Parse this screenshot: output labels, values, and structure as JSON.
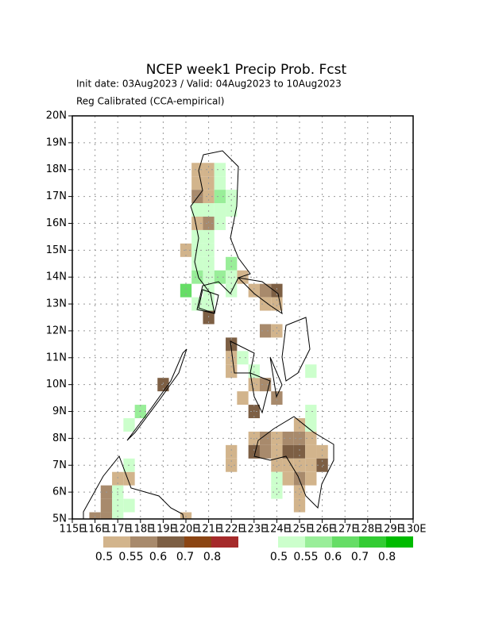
{
  "chart_data": {
    "type": "grid-map",
    "title": "NCEP week1 Precip Prob. Fcst",
    "subtitle": "Init date: 03Aug2023 / Valid: 04Aug2023 to 10Aug2023",
    "subtitle2": "Reg Calibrated (CCA-empirical)",
    "xlim": [
      115,
      130
    ],
    "ylim": [
      5,
      20
    ],
    "xticks": [
      {
        "value": 115,
        "label": "115E"
      },
      {
        "value": 116,
        "label": "116E"
      },
      {
        "value": 117,
        "label": "117E"
      },
      {
        "value": 118,
        "label": "118E"
      },
      {
        "value": 119,
        "label": "119E"
      },
      {
        "value": 120,
        "label": "120E"
      },
      {
        "value": 121,
        "label": "121E"
      },
      {
        "value": 122,
        "label": "122E"
      },
      {
        "value": 123,
        "label": "123E"
      },
      {
        "value": 124,
        "label": "124E"
      },
      {
        "value": 125,
        "label": "125E"
      },
      {
        "value": 126,
        "label": "126E"
      },
      {
        "value": 127,
        "label": "127E"
      },
      {
        "value": 128,
        "label": "128E"
      },
      {
        "value": 129,
        "label": "129E"
      },
      {
        "value": 130,
        "label": "130E"
      }
    ],
    "yticks": [
      {
        "value": 5,
        "label": "5N"
      },
      {
        "value": 6,
        "label": "6N"
      },
      {
        "value": 7,
        "label": "7N"
      },
      {
        "value": 8,
        "label": "8N"
      },
      {
        "value": 9,
        "label": "9N"
      },
      {
        "value": 10,
        "label": "10N"
      },
      {
        "value": 11,
        "label": "11N"
      },
      {
        "value": 12,
        "label": "12N"
      },
      {
        "value": 13,
        "label": "13N"
      },
      {
        "value": 14,
        "label": "14N"
      },
      {
        "value": 15,
        "label": "15N"
      },
      {
        "value": 16,
        "label": "16N"
      },
      {
        "value": 17,
        "label": "17N"
      },
      {
        "value": 18,
        "label": "18N"
      },
      {
        "value": 19,
        "label": "19N"
      },
      {
        "value": 20,
        "label": "20N"
      }
    ],
    "grid": true,
    "levels": [
      0.5,
      0.55,
      0.6,
      0.7,
      0.8
    ],
    "below_colors": [
      "#d2b48c",
      "#a88a6c",
      "#7d5f44",
      "#8b4513",
      "#a52a2a"
    ],
    "above_colors": [
      "#ccffcc",
      "#99ee99",
      "#66dd66",
      "#33cc33",
      "#00bb00"
    ],
    "below": [
      [
        120.5,
        18,
        0.5
      ],
      [
        121,
        18,
        0.5
      ],
      [
        120.5,
        17.5,
        0.5
      ],
      [
        121,
        17.5,
        0.5
      ],
      [
        120.5,
        17,
        0.55
      ],
      [
        121,
        17,
        0.5
      ],
      [
        120.5,
        16,
        0.5
      ],
      [
        121,
        16,
        0.55
      ],
      [
        120,
        15,
        0.5
      ],
      [
        122.5,
        14,
        0.5
      ],
      [
        123,
        13.5,
        0.5
      ],
      [
        123.5,
        13.5,
        0.55
      ],
      [
        124,
        13.5,
        0.6
      ],
      [
        123.5,
        13,
        0.5
      ],
      [
        124,
        13,
        0.5
      ],
      [
        121,
        12.5,
        0.6
      ],
      [
        123.5,
        12,
        0.55
      ],
      [
        124,
        12,
        0.5
      ],
      [
        122,
        11.5,
        0.6
      ],
      [
        122,
        11,
        0.5
      ],
      [
        122,
        10.5,
        0.5
      ],
      [
        119,
        10,
        0.6
      ],
      [
        123,
        10,
        0.5
      ],
      [
        123.5,
        10,
        0.55
      ],
      [
        122.5,
        9.5,
        0.5
      ],
      [
        124,
        9.5,
        0.55
      ],
      [
        123,
        9,
        0.6
      ],
      [
        125,
        8.5,
        0.5
      ],
      [
        123,
        8,
        0.5
      ],
      [
        123.5,
        8,
        0.55
      ],
      [
        124,
        8,
        0.5
      ],
      [
        124.5,
        8,
        0.55
      ],
      [
        125,
        8,
        0.55
      ],
      [
        125.5,
        8,
        0.5
      ],
      [
        122,
        7.5,
        0.5
      ],
      [
        123,
        7.5,
        0.6
      ],
      [
        123.5,
        7.5,
        0.55
      ],
      [
        124,
        7.5,
        0.5
      ],
      [
        124.5,
        7.5,
        0.6
      ],
      [
        125,
        7.5,
        0.6
      ],
      [
        125.5,
        7.5,
        0.5
      ],
      [
        126,
        7.5,
        0.5
      ],
      [
        122,
        7,
        0.5
      ],
      [
        124,
        7,
        0.5
      ],
      [
        124.5,
        7,
        0.5
      ],
      [
        125,
        7,
        0.5
      ],
      [
        125.5,
        7,
        0.5
      ],
      [
        126,
        7,
        0.6
      ],
      [
        117,
        6.5,
        0.5
      ],
      [
        117.5,
        6.5,
        0.5
      ],
      [
        124.5,
        6.5,
        0.5
      ],
      [
        125,
        6.5,
        0.55
      ],
      [
        125.5,
        6.5,
        0.5
      ],
      [
        116.5,
        6,
        0.55
      ],
      [
        125,
        6,
        0.5
      ],
      [
        116.5,
        5.5,
        0.55
      ],
      [
        125,
        5.5,
        0.5
      ],
      [
        116,
        5,
        0.55
      ],
      [
        116.5,
        5,
        0.55
      ],
      [
        120,
        5,
        0.5
      ]
    ],
    "above": [
      [
        121.5,
        18,
        0.5
      ],
      [
        121.5,
        17.5,
        0.5
      ],
      [
        121.5,
        17,
        0.55
      ],
      [
        122,
        17,
        0.5
      ],
      [
        120.5,
        16.5,
        0.5
      ],
      [
        121,
        16.5,
        0.5
      ],
      [
        121.5,
        16.5,
        0.5
      ],
      [
        122,
        16.5,
        0.5
      ],
      [
        121.5,
        16,
        0.5
      ],
      [
        120.5,
        15.5,
        0.5
      ],
      [
        121,
        15.5,
        0.5
      ],
      [
        120.5,
        15,
        0.5
      ],
      [
        121,
        15,
        0.5
      ],
      [
        120.5,
        14.5,
        0.5
      ],
      [
        121,
        14.5,
        0.5
      ],
      [
        122,
        14.5,
        0.55
      ],
      [
        120.5,
        14,
        0.55
      ],
      [
        121,
        14,
        0.5
      ],
      [
        121.5,
        14,
        0.55
      ],
      [
        122,
        14,
        0.5
      ],
      [
        120,
        13.5,
        0.6
      ],
      [
        121,
        13.5,
        0.5
      ],
      [
        122,
        13.5,
        0.5
      ],
      [
        120.5,
        13,
        0.5
      ],
      [
        121,
        13,
        0.5
      ],
      [
        122.5,
        11,
        0.5
      ],
      [
        123,
        10.5,
        0.5
      ],
      [
        125.5,
        10.5,
        0.5
      ],
      [
        118,
        9,
        0.55
      ],
      [
        125.5,
        9,
        0.5
      ],
      [
        117.5,
        8.5,
        0.5
      ],
      [
        125.5,
        8.5,
        0.5
      ],
      [
        117.5,
        7,
        0.5
      ],
      [
        124,
        6.5,
        0.5
      ],
      [
        117,
        6,
        0.5
      ],
      [
        124,
        6,
        0.5
      ],
      [
        117,
        5.5,
        0.5
      ],
      [
        117.5,
        5.5,
        0.5
      ],
      [
        117,
        5,
        0.5
      ]
    ]
  }
}
